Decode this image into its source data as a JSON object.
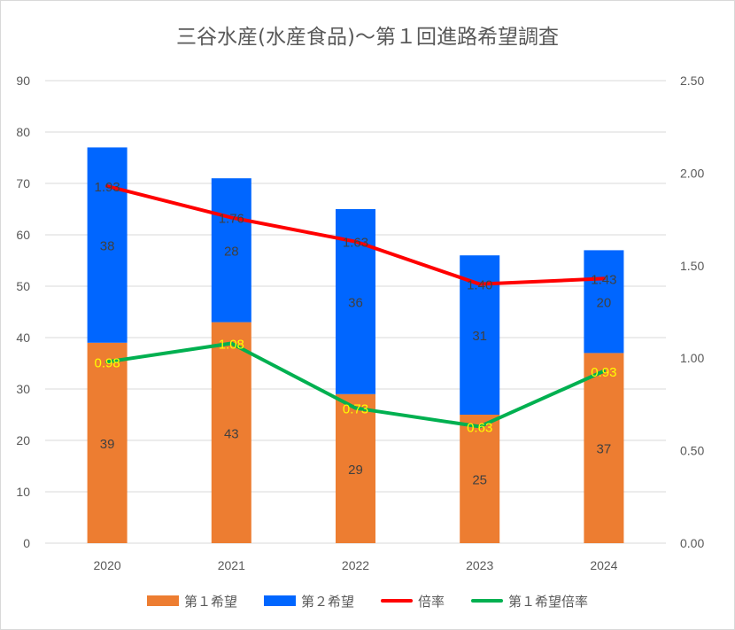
{
  "chart_data": {
    "type": "bar",
    "title": "三谷水産(水産食品)～第１回進路希望調査",
    "categories": [
      "2020",
      "2021",
      "2022",
      "2023",
      "2024"
    ],
    "series": [
      {
        "name": "第１希望",
        "kind": "bar",
        "axis": "left",
        "color": "#ED7D31",
        "values": [
          39,
          43,
          29,
          25,
          37
        ]
      },
      {
        "name": "第２希望",
        "kind": "bar",
        "axis": "left",
        "color": "#0066FF",
        "values": [
          38,
          28,
          36,
          31,
          20
        ]
      },
      {
        "name": "倍率",
        "kind": "line",
        "axis": "right",
        "color": "#FF0000",
        "label_color": "#404040",
        "values": [
          1.93,
          1.76,
          1.63,
          1.4,
          1.43
        ],
        "labels": [
          "1.93",
          "1.76",
          "1.63",
          "1.40",
          "1.43"
        ]
      },
      {
        "name": "第１希望倍率",
        "kind": "line",
        "axis": "right",
        "color": "#00B050",
        "label_color": "#FFFF00",
        "values": [
          0.98,
          1.08,
          0.73,
          0.63,
          0.93
        ],
        "labels": [
          "0.98",
          "1.08",
          "0.73",
          "0.63",
          "0.93"
        ]
      }
    ],
    "ylim_left": [
      0,
      90
    ],
    "yticks_left": [
      "0",
      "10",
      "20",
      "30",
      "40",
      "50",
      "60",
      "70",
      "80",
      "90"
    ],
    "ylim_right": [
      0,
      2.5
    ],
    "yticks_right": [
      "0.00",
      "0.50",
      "1.00",
      "1.50",
      "2.00",
      "2.50"
    ],
    "grid": true,
    "legend_position": "bottom"
  }
}
